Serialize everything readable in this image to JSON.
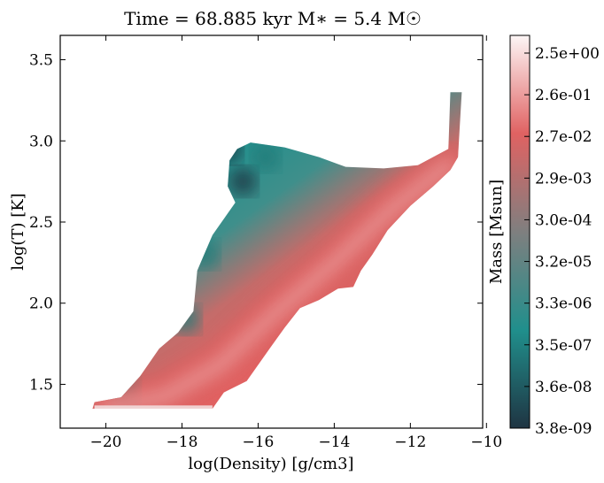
{
  "chart_data": {
    "type": "heatmap",
    "title": "Time = 68.885 kyr   M$_*$ = 5.4 M$_\\odot$",
    "title_display": "Time = 68.885 kyr   M∗ = 5.4 M☉",
    "xlabel": "log(Density) [g/cm3]",
    "ylabel": "log(T) [K]",
    "xlim": [
      -21.2,
      -10.1
    ],
    "ylim": [
      1.23,
      3.65
    ],
    "x_ticks": [
      -20,
      -18,
      -16,
      -14,
      -12,
      -10
    ],
    "x_tick_labels": [
      "−20",
      "−18",
      "−16",
      "−14",
      "−12",
      "−10"
    ],
    "y_ticks": [
      1.5,
      2.0,
      2.5,
      3.0,
      3.5
    ],
    "y_tick_labels": [
      "1.5",
      "2.0",
      "2.5",
      "3.0",
      "3.5"
    ],
    "colorbar": {
      "label": "Mass [Msun]",
      "scale": "log",
      "tick_labels_top_to_bottom": [
        "2.5e+00",
        "2.6e-01",
        "2.7e-02",
        "2.9e-03",
        "3.0e-04",
        "3.2e-05",
        "3.3e-06",
        "3.5e-07",
        "3.6e-08",
        "3.8e-09"
      ],
      "colors_low_to_high": [
        "#1f3442",
        "#208f8c",
        "#7f7f7f",
        "#e06262",
        "#fdf6f6"
      ]
    },
    "region_outline": [
      [
        -20.35,
        1.35
      ],
      [
        -17.2,
        1.35
      ],
      [
        -16.9,
        1.45
      ],
      [
        -16.3,
        1.52
      ],
      [
        -15.7,
        1.72
      ],
      [
        -15.3,
        1.85
      ],
      [
        -14.9,
        1.97
      ],
      [
        -14.4,
        2.02
      ],
      [
        -13.9,
        2.09
      ],
      [
        -13.5,
        2.1
      ],
      [
        -13.3,
        2.2
      ],
      [
        -13.0,
        2.3
      ],
      [
        -12.6,
        2.45
      ],
      [
        -12.0,
        2.6
      ],
      [
        -11.4,
        2.72
      ],
      [
        -10.95,
        2.82
      ],
      [
        -10.75,
        2.9
      ],
      [
        -10.65,
        3.3
      ],
      [
        -10.95,
        3.3
      ],
      [
        -11.0,
        2.95
      ],
      [
        -11.8,
        2.85
      ],
      [
        -12.7,
        2.83
      ],
      [
        -13.7,
        2.84
      ],
      [
        -14.4,
        2.9
      ],
      [
        -15.3,
        2.96
      ],
      [
        -16.2,
        2.99
      ],
      [
        -16.55,
        2.95
      ],
      [
        -16.75,
        2.88
      ],
      [
        -16.8,
        2.72
      ],
      [
        -16.6,
        2.62
      ],
      [
        -17.2,
        2.42
      ],
      [
        -17.6,
        2.2
      ],
      [
        -17.7,
        1.95
      ],
      [
        -18.1,
        1.82
      ],
      [
        -18.6,
        1.72
      ],
      [
        -19.1,
        1.55
      ],
      [
        -19.6,
        1.42
      ],
      [
        -20.3,
        1.39
      ]
    ],
    "ridge_high_mass": [
      [
        -20.0,
        1.36
      ],
      [
        -18.5,
        1.42
      ],
      [
        -17.0,
        1.62
      ],
      [
        -15.5,
        1.95
      ],
      [
        -14.0,
        2.25
      ],
      [
        -12.5,
        2.58
      ],
      [
        -11.0,
        2.85
      ]
    ]
  }
}
